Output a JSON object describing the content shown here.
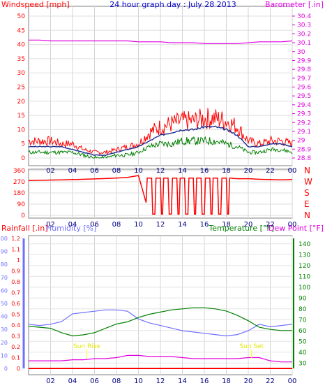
{
  "header": {
    "left": "Windspeed [mph]",
    "center": "24 hour graph day : July 28 2013",
    "right": "Barometer [.in]"
  },
  "colors": {
    "wind": "#ff0000",
    "gust_avg": "#1a2a8c",
    "wind_avg": "#007f00",
    "baro": "#e000e0",
    "dir": "#ff0000",
    "rain": "#ff0000",
    "hum": "#7070ff",
    "temp": "#008000",
    "dew": "#e000e0",
    "sun": "#ffff00",
    "axis_wind": "#ff0000",
    "axis_baro": "#e000e0"
  },
  "hour_ticks": [
    "02",
    "04",
    "06",
    "08",
    "10",
    "12",
    "14",
    "16",
    "18",
    "20",
    "22",
    "00"
  ],
  "speed_axis": [
    "0",
    "5",
    "10",
    "15",
    "20",
    "25",
    "30",
    "35",
    "40",
    "45",
    "50"
  ],
  "baro_axis": [
    "28.8",
    "28.9",
    "29",
    "29.1",
    "29.2",
    "29.3",
    "29.4",
    "29.5",
    "29.6",
    "29.7",
    "29.8",
    "29.9",
    "30",
    "30.1",
    "30.2",
    "30.3",
    "30.4"
  ],
  "dir_axis": [
    "0",
    "90",
    "180",
    "270",
    "360"
  ],
  "dir_letters": [
    "N",
    "W",
    "S",
    "E",
    "N"
  ],
  "bottom_labels": {
    "rain": "Rainfall [.in]",
    "humidity": "Humidity [%]",
    "temperature": "Temperature [°F]",
    "dewpoint": "Dew Point [°F]"
  },
  "rain_axis": [
    "0",
    "0.1",
    "0.2",
    "0.3",
    "0.4",
    "0.5",
    "0.6",
    "0.7",
    "0.8",
    "0.9",
    "1",
    "1.1",
    "1.2"
  ],
  "hum_axis": [
    "0",
    "10",
    "20",
    "30",
    "40",
    "50",
    "60",
    "70",
    "80",
    "90",
    "100"
  ],
  "temp_axis": [
    "30",
    "40",
    "50",
    "60",
    "70",
    "80",
    "90",
    "100",
    "110",
    "120",
    "130",
    "140"
  ],
  "sun": {
    "rise": "Sun Rise",
    "set": "Sun Set"
  },
  "chart_data": [
    {
      "type": "line",
      "title": "24 hour graph day : July 28 2013",
      "xlabel": "",
      "ylabel": "Windspeed [mph]",
      "y2label": "Barometer [.in]",
      "ylim": [
        0,
        50
      ],
      "y2lim": [
        28.8,
        30.4
      ],
      "x": [
        0,
        1,
        2,
        3,
        4,
        5,
        6,
        7,
        8,
        9,
        10,
        11,
        12,
        13,
        14,
        15,
        16,
        17,
        18,
        19,
        20,
        21,
        22,
        23,
        24
      ],
      "series": [
        {
          "name": "gust",
          "values": [
            6,
            6,
            6,
            5,
            5,
            3,
            2,
            2,
            3,
            4,
            5,
            9,
            11,
            12,
            13,
            13,
            14,
            14,
            13,
            11,
            6,
            5,
            6,
            6,
            5
          ]
        },
        {
          "name": "average",
          "values": [
            4,
            4,
            4,
            4,
            3,
            2,
            1,
            1,
            2,
            3,
            4,
            6,
            8,
            9,
            10,
            10,
            11,
            11,
            10,
            8,
            4,
            4,
            5,
            5,
            4
          ]
        },
        {
          "name": "wind",
          "values": [
            2,
            2,
            2,
            2,
            2,
            1,
            0,
            0,
            1,
            1,
            2,
            4,
            5,
            5,
            6,
            6,
            6,
            6,
            5,
            4,
            2,
            2,
            3,
            3,
            2
          ]
        },
        {
          "name": "barometer",
          "values": [
            30.13,
            30.13,
            30.12,
            30.12,
            30.12,
            30.12,
            30.12,
            30.12,
            30.12,
            30.12,
            30.11,
            30.11,
            30.11,
            30.1,
            30.1,
            30.1,
            30.09,
            30.09,
            30.09,
            30.09,
            30.1,
            30.11,
            30.11,
            30.11,
            30.12
          ]
        }
      ]
    },
    {
      "type": "line",
      "ylabel": "",
      "ylim": [
        0,
        360
      ],
      "x": [
        0,
        1,
        2,
        3,
        4,
        5,
        6,
        7,
        8,
        9,
        10,
        11,
        12,
        13,
        14,
        15,
        16,
        17,
        18,
        19,
        20,
        21,
        22,
        23,
        24
      ],
      "series": [
        {
          "name": "direction",
          "values": [
            280,
            282,
            284,
            285,
            288,
            290,
            293,
            296,
            300,
            305,
            320,
            10,
            200,
            20,
            200,
            15,
            300,
            300,
            300,
            295,
            295,
            290,
            288,
            285,
            288
          ]
        }
      ]
    },
    {
      "type": "line",
      "ylim_rain": [
        0,
        1.2
      ],
      "ylim_humidity": [
        0,
        100
      ],
      "ylim_temperature": [
        25,
        145
      ],
      "x": [
        0,
        1,
        2,
        3,
        4,
        5,
        6,
        7,
        8,
        9,
        10,
        11,
        12,
        13,
        14,
        15,
        16,
        17,
        18,
        19,
        20,
        21,
        22,
        23,
        24
      ],
      "series": [
        {
          "name": "rainfall",
          "values": [
            0,
            0,
            0,
            0,
            0,
            0,
            0,
            0,
            0,
            0,
            0,
            0,
            0,
            0,
            0,
            0,
            0,
            0,
            0,
            0,
            0,
            0,
            0,
            0,
            0
          ]
        },
        {
          "name": "humidity",
          "values": [
            34,
            33,
            34,
            36,
            42,
            43,
            44,
            45,
            45,
            44,
            38,
            35,
            33,
            31,
            29,
            28,
            27,
            26,
            25,
            26,
            29,
            34,
            32,
            33,
            34
          ]
        },
        {
          "name": "temperature",
          "values": [
            64,
            63,
            62,
            58,
            55,
            56,
            58,
            62,
            66,
            68,
            72,
            75,
            77,
            79,
            80,
            81,
            81,
            80,
            78,
            74,
            69,
            63,
            61,
            60,
            60
          ]
        },
        {
          "name": "dew point",
          "values": [
            32,
            32,
            32,
            32,
            33,
            33,
            34,
            34,
            35,
            37,
            37,
            36,
            36,
            36,
            35,
            34,
            34,
            34,
            34,
            34,
            35,
            35,
            32,
            31,
            31
          ]
        }
      ]
    }
  ]
}
